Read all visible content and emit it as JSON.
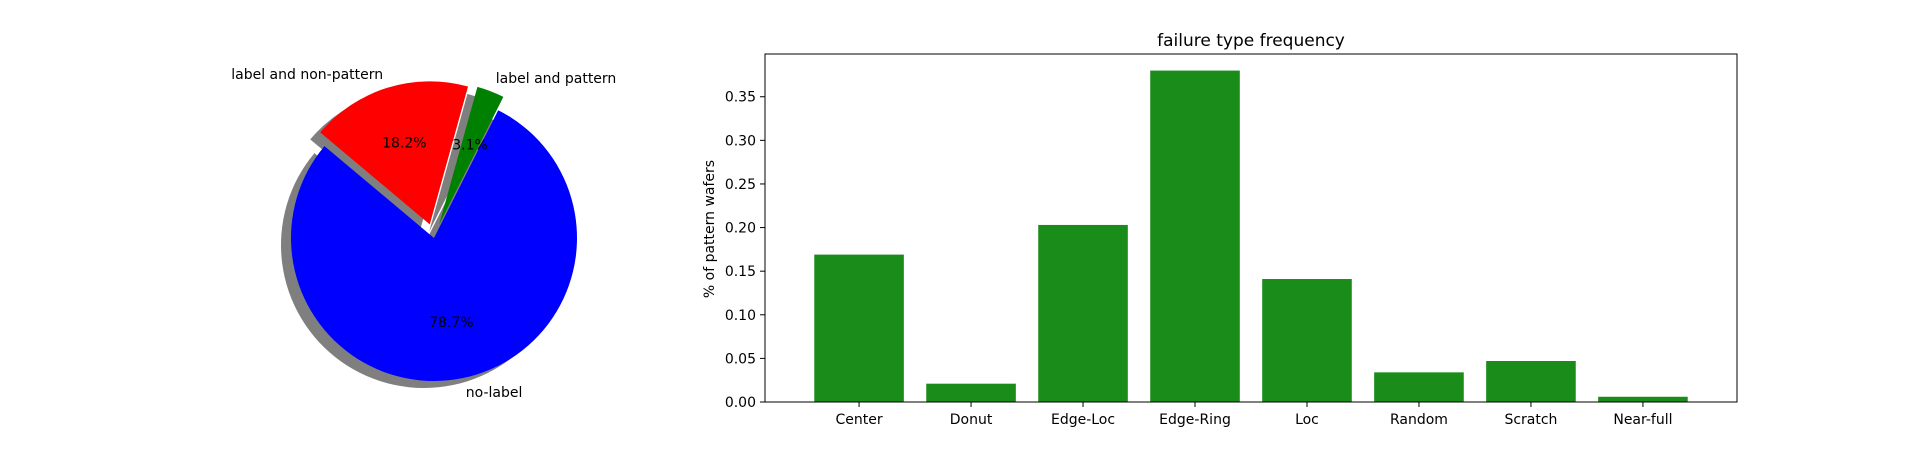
{
  "chart_data": [
    {
      "type": "pie",
      "slices": [
        {
          "label": "no-label",
          "value": 78.7,
          "pct_label": "78.7%",
          "color": "#0000ff",
          "exploded": false
        },
        {
          "label": "label and pattern",
          "value": 3.1,
          "pct_label": "3.1%",
          "color": "#008000",
          "exploded": true
        },
        {
          "label": "label and non-pattern",
          "value": 18.2,
          "pct_label": "18.2%",
          "color": "#ff0000",
          "exploded": true
        }
      ],
      "shadow": true,
      "title": ""
    },
    {
      "type": "bar",
      "title": "failure type frequency",
      "xlabel": "",
      "ylabel": "% of pattern wafers",
      "categories": [
        "Center",
        "Donut",
        "Edge-Loc",
        "Edge-Ring",
        "Loc",
        "Random",
        "Scratch",
        "Near-full"
      ],
      "values": [
        0.169,
        0.021,
        0.203,
        0.38,
        0.141,
        0.034,
        0.047,
        0.006
      ],
      "ylim": [
        0,
        0.399
      ],
      "yticks": [
        "0.00",
        "0.05",
        "0.10",
        "0.15",
        "0.20",
        "0.25",
        "0.30",
        "0.35"
      ],
      "bar_color": "#1a8c1a",
      "grid": false
    }
  ]
}
